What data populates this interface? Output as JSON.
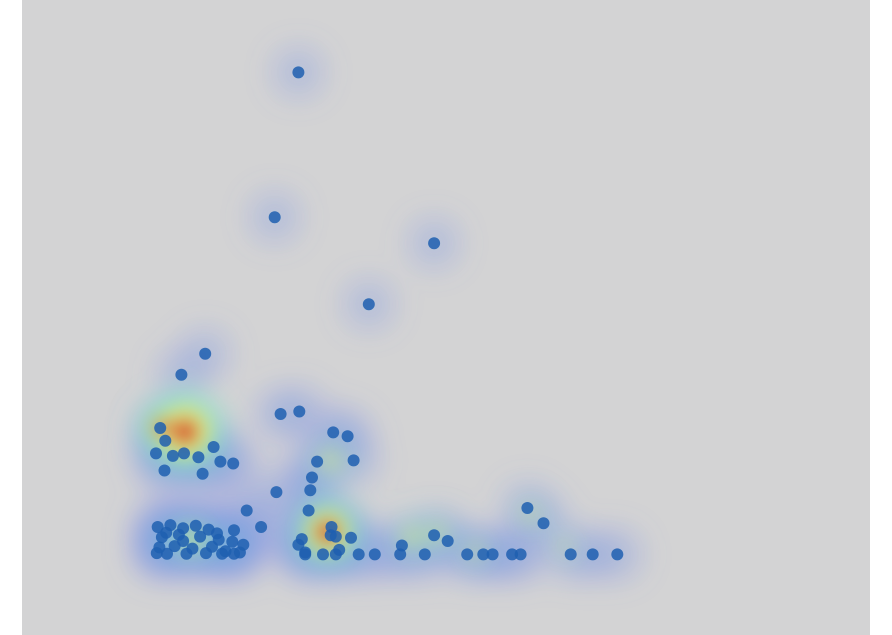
{
  "chart_data": {
    "type": "scatter",
    "title": "",
    "xlabel": "",
    "ylabel": "",
    "xlim": [
      0,
      100
    ],
    "ylim": [
      0,
      100
    ],
    "grid": false,
    "legend": "none",
    "overlay": "density-heatmap",
    "colors": {
      "background": "#d3d3d4",
      "point": "#1f5fb0",
      "heat_low": "#7a86e8",
      "heat_mid": "#7ee6c8",
      "heat_mid2": "#e8f07a",
      "heat_high": "#d41818"
    },
    "points": [
      {
        "x": 32.6,
        "y": 88.6
      },
      {
        "x": 29.8,
        "y": 65.8
      },
      {
        "x": 48.6,
        "y": 61.7
      },
      {
        "x": 40.9,
        "y": 52.1
      },
      {
        "x": 21.6,
        "y": 44.3
      },
      {
        "x": 18.8,
        "y": 41.0
      },
      {
        "x": 16.3,
        "y": 32.6
      },
      {
        "x": 16.9,
        "y": 30.6
      },
      {
        "x": 15.8,
        "y": 28.6
      },
      {
        "x": 17.8,
        "y": 28.2
      },
      {
        "x": 19.1,
        "y": 28.6
      },
      {
        "x": 20.8,
        "y": 28.0
      },
      {
        "x": 23.4,
        "y": 27.3
      },
      {
        "x": 22.6,
        "y": 29.6
      },
      {
        "x": 24.9,
        "y": 27.0
      },
      {
        "x": 16.8,
        "y": 25.9
      },
      {
        "x": 21.3,
        "y": 25.4
      },
      {
        "x": 30.5,
        "y": 34.8
      },
      {
        "x": 32.7,
        "y": 35.2
      },
      {
        "x": 36.7,
        "y": 31.9
      },
      {
        "x": 38.4,
        "y": 31.3
      },
      {
        "x": 39.1,
        "y": 27.5
      },
      {
        "x": 34.8,
        "y": 27.3
      },
      {
        "x": 34.2,
        "y": 24.8
      },
      {
        "x": 34.0,
        "y": 22.8
      },
      {
        "x": 30.0,
        "y": 22.5
      },
      {
        "x": 26.5,
        "y": 19.6
      },
      {
        "x": 28.2,
        "y": 17.0
      },
      {
        "x": 25.0,
        "y": 16.5
      },
      {
        "x": 33.8,
        "y": 19.6
      },
      {
        "x": 36.5,
        "y": 17.0
      },
      {
        "x": 36.4,
        "y": 15.7
      },
      {
        "x": 33.0,
        "y": 15.1
      },
      {
        "x": 37.0,
        "y": 15.5
      },
      {
        "x": 38.8,
        "y": 15.3
      },
      {
        "x": 32.6,
        "y": 14.2
      },
      {
        "x": 33.4,
        "y": 13.0
      },
      {
        "x": 37.4,
        "y": 13.4
      },
      {
        "x": 44.8,
        "y": 14.1
      },
      {
        "x": 48.6,
        "y": 15.7
      },
      {
        "x": 50.2,
        "y": 14.8
      },
      {
        "x": 59.6,
        "y": 20.0
      },
      {
        "x": 61.5,
        "y": 17.6
      },
      {
        "x": 33.4,
        "y": 12.7
      },
      {
        "x": 35.5,
        "y": 12.7
      },
      {
        "x": 37.0,
        "y": 12.7
      },
      {
        "x": 39.7,
        "y": 12.7
      },
      {
        "x": 41.6,
        "y": 12.7
      },
      {
        "x": 44.6,
        "y": 12.7
      },
      {
        "x": 47.5,
        "y": 12.7
      },
      {
        "x": 52.5,
        "y": 12.7
      },
      {
        "x": 54.4,
        "y": 12.7
      },
      {
        "x": 55.5,
        "y": 12.7
      },
      {
        "x": 57.8,
        "y": 12.7
      },
      {
        "x": 58.8,
        "y": 12.7
      },
      {
        "x": 64.7,
        "y": 12.7
      },
      {
        "x": 67.3,
        "y": 12.7
      },
      {
        "x": 70.2,
        "y": 12.7
      },
      {
        "x": 16.0,
        "y": 17.0
      },
      {
        "x": 17.5,
        "y": 17.3
      },
      {
        "x": 19.0,
        "y": 16.8
      },
      {
        "x": 20.5,
        "y": 17.2
      },
      {
        "x": 22.0,
        "y": 16.6
      },
      {
        "x": 16.5,
        "y": 15.4
      },
      {
        "x": 18.5,
        "y": 15.8
      },
      {
        "x": 21.0,
        "y": 15.5
      },
      {
        "x": 23.2,
        "y": 15.0
      },
      {
        "x": 24.8,
        "y": 14.7
      },
      {
        "x": 26.1,
        "y": 14.2
      },
      {
        "x": 16.2,
        "y": 13.8
      },
      {
        "x": 18.0,
        "y": 14.0
      },
      {
        "x": 20.1,
        "y": 13.6
      },
      {
        "x": 22.4,
        "y": 13.9
      },
      {
        "x": 24.0,
        "y": 13.2
      },
      {
        "x": 25.7,
        "y": 13.0
      },
      {
        "x": 15.9,
        "y": 12.9
      },
      {
        "x": 19.4,
        "y": 12.8
      },
      {
        "x": 21.7,
        "y": 12.9
      },
      {
        "x": 23.6,
        "y": 12.8
      },
      {
        "x": 25.0,
        "y": 12.8
      },
      {
        "x": 17.1,
        "y": 12.8
      },
      {
        "x": 19.0,
        "y": 14.8
      },
      {
        "x": 17.0,
        "y": 16.1
      },
      {
        "x": 23.0,
        "y": 16.0
      }
    ],
    "density_hotspots": [
      {
        "x": 19.2,
        "y": 32.0,
        "intensity": 1.0
      },
      {
        "x": 16.6,
        "y": 32.6,
        "intensity": 0.55
      },
      {
        "x": 36.0,
        "y": 16.2,
        "intensity": 0.85
      },
      {
        "x": 46.0,
        "y": 15.4,
        "intensity": 0.4
      },
      {
        "x": 49.0,
        "y": 16.0,
        "intensity": 0.35
      },
      {
        "x": 36.4,
        "y": 27.5,
        "intensity": 0.4
      },
      {
        "x": 20.0,
        "y": 15.0,
        "intensity": 0.45
      },
      {
        "x": 53.5,
        "y": 13.2,
        "intensity": 0.3
      },
      {
        "x": 64.0,
        "y": 14.0,
        "intensity": 0.25
      },
      {
        "x": 60.0,
        "y": 19.0,
        "intensity": 0.3
      }
    ]
  }
}
